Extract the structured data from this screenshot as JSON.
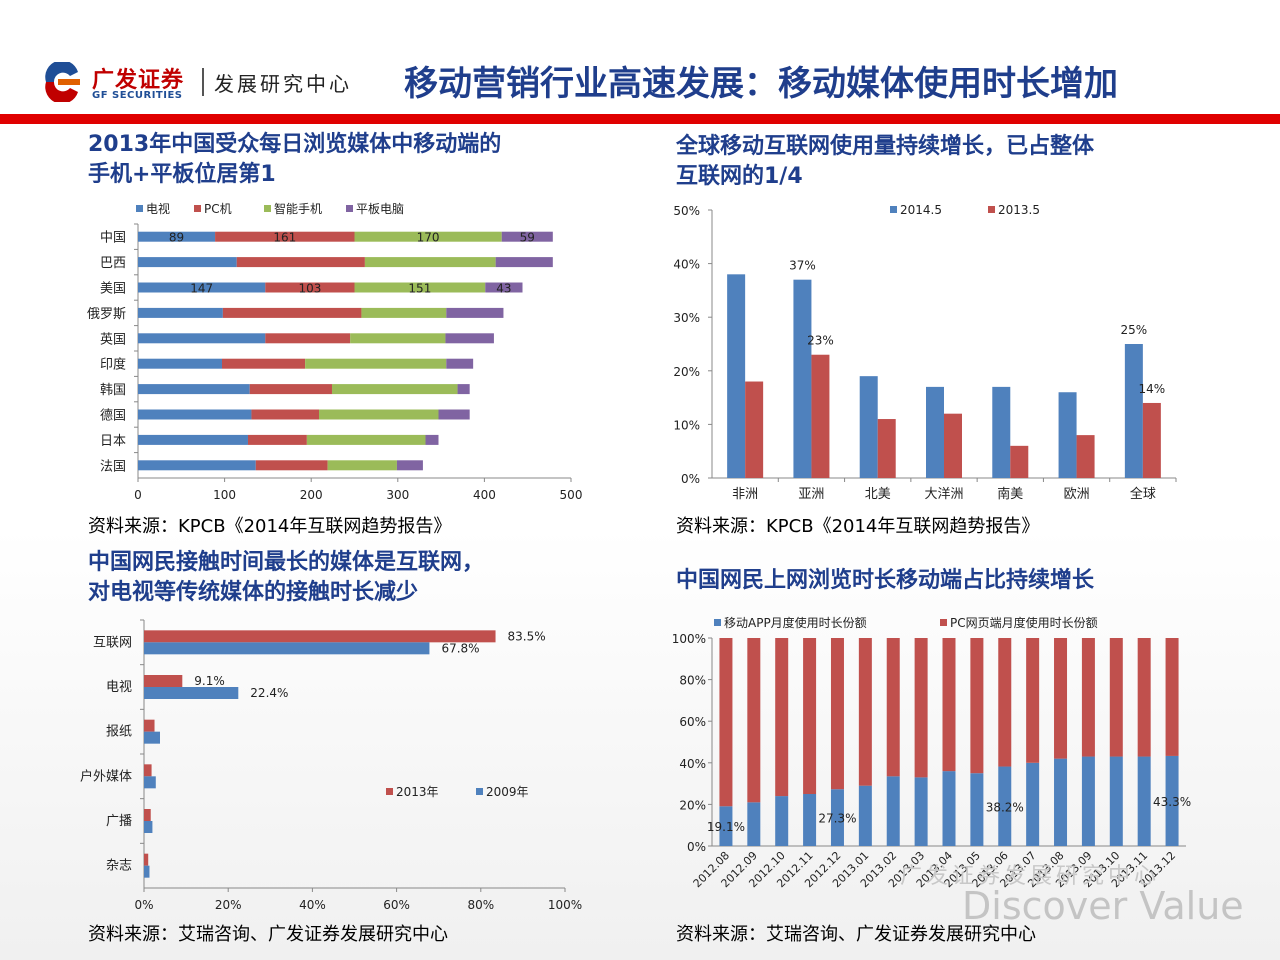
{
  "header": {
    "logo_cn": "广发证券",
    "logo_en": "GF SECURITIES",
    "logo_sub": "发展研究中心",
    "title": "移动营销行业高速发展：移动媒体使用时长增加"
  },
  "colors": {
    "blue": "#4f81bd",
    "red": "#c0504d",
    "green": "#9bbb59",
    "purple": "#8064a2",
    "title_blue": "#1f3e8c",
    "accent_red": "#e00000"
  },
  "panel1": {
    "title_line1": "2013年中国受众每日浏览媒体中移动端的",
    "title_line2": "手机+平板位居第1",
    "source": "资料来源：KPCB《2014年互联网趋势报告》"
  },
  "panel2": {
    "title_line1": "全球移动互联网使用量持续增长，已占整体",
    "title_line2": "互联网的1/4",
    "source": "资料来源：KPCB《2014年互联网趋势报告》"
  },
  "panel3": {
    "title_line1": "中国网民接触时间最长的媒体是互联网，",
    "title_line2": "对电视等传统媒体的接触时长减少",
    "source": "资料来源：艾瑞咨询、广发证券发展研究中心"
  },
  "panel4": {
    "title_line1": "中国网民上网浏览时长移动端占比持续增长",
    "source": "资料来源：艾瑞咨询、广发证券发展研究中心"
  },
  "watermark": {
    "line1": "广发证券发展研究中心",
    "line2": "Discover Value"
  },
  "chart_data": [
    {
      "type": "bar",
      "orientation": "horizontal",
      "stacked": true,
      "categories": [
        "中国",
        "巴西",
        "美国",
        "俄罗斯",
        "英国",
        "印度",
        "韩国",
        "德国",
        "日本",
        "法国"
      ],
      "series": [
        {
          "name": "电视",
          "color": "#4f81bd",
          "values": [
            89,
            114,
            147,
            98,
            147,
            97,
            129,
            131,
            127,
            136
          ]
        },
        {
          "name": "PC机",
          "color": "#c0504d",
          "values": [
            161,
            148,
            103,
            160,
            98,
            96,
            95,
            78,
            68,
            83
          ]
        },
        {
          "name": "智能手机",
          "color": "#9bbb59",
          "values": [
            170,
            151,
            151,
            98,
            110,
            163,
            145,
            138,
            137,
            80
          ]
        },
        {
          "name": "平板电脑",
          "color": "#8064a2",
          "values": [
            59,
            66,
            43,
            66,
            56,
            31,
            14,
            36,
            15,
            30
          ]
        }
      ],
      "labeled_rows": [
        "中国",
        "美国"
      ],
      "xlim": [
        0,
        500
      ],
      "xticks": [
        0,
        100,
        200,
        300,
        400,
        500
      ],
      "legend": "top"
    },
    {
      "type": "bar",
      "categories": [
        "非洲",
        "亚洲",
        "北美",
        "大洋洲",
        "南美",
        "欧洲",
        "全球"
      ],
      "series": [
        {
          "name": "2014.5",
          "color": "#4f81bd",
          "values": [
            38,
            37,
            19,
            17,
            17,
            16,
            25
          ]
        },
        {
          "name": "2013.5",
          "color": "#c0504d",
          "values": [
            18,
            23,
            11,
            12,
            6,
            8,
            14
          ]
        }
      ],
      "data_labels": [
        {
          "series": 0,
          "index": 1,
          "text": "37%"
        },
        {
          "series": 1,
          "index": 1,
          "text": "23%"
        },
        {
          "series": 0,
          "index": 6,
          "text": "25%"
        },
        {
          "series": 1,
          "index": 6,
          "text": "14%"
        }
      ],
      "ylim": [
        0,
        50
      ],
      "yticks": [
        "0%",
        "10%",
        "20%",
        "30%",
        "40%",
        "50%"
      ],
      "legend": "top"
    },
    {
      "type": "bar",
      "orientation": "horizontal",
      "categories": [
        "互联网",
        "电视",
        "报纸",
        "户外媒体",
        "广播",
        "杂志"
      ],
      "series": [
        {
          "name": "2013年",
          "color": "#c0504d",
          "values": [
            83.5,
            9.1,
            2.5,
            1.8,
            1.6,
            1.0
          ]
        },
        {
          "name": "2009年",
          "color": "#4f81bd",
          "values": [
            67.8,
            22.4,
            3.8,
            2.8,
            2.0,
            1.3
          ]
        }
      ],
      "data_labels": [
        {
          "series": 0,
          "index": 0,
          "text": "83.5%"
        },
        {
          "series": 1,
          "index": 0,
          "text": "67.8%"
        },
        {
          "series": 0,
          "index": 1,
          "text": "9.1%"
        },
        {
          "series": 1,
          "index": 1,
          "text": "22.4%"
        }
      ],
      "xlim": [
        0,
        100
      ],
      "xticks": [
        "0%",
        "20%",
        "40%",
        "60%",
        "80%",
        "100%"
      ],
      "legend": "right"
    },
    {
      "type": "bar",
      "stacked": true,
      "percent": true,
      "categories": [
        "2012.08",
        "2012.09",
        "2012.10",
        "2012.11",
        "2012.12",
        "2013.01",
        "2013.02",
        "2013.03",
        "2013.04",
        "2013.05",
        "2013.06",
        "2013.07",
        "2013.08",
        "2013.09",
        "2013.10",
        "2013.11",
        "2013.12"
      ],
      "series": [
        {
          "name": "移动APP月度使用时长份额",
          "color": "#4f81bd",
          "values": [
            19.1,
            21,
            24,
            25,
            27.3,
            29,
            33.5,
            33,
            36,
            35,
            38.2,
            40,
            42,
            43,
            43,
            43,
            43.3
          ]
        },
        {
          "name": "PC网页端月度使用时长份额",
          "color": "#c0504d",
          "values": [
            80.9,
            79,
            76,
            75,
            72.7,
            71,
            66.5,
            67,
            64,
            65,
            61.8,
            60,
            58,
            57,
            57,
            57,
            56.7
          ]
        }
      ],
      "data_labels": [
        {
          "series": 0,
          "index": 0,
          "text": "19.1%"
        },
        {
          "series": 0,
          "index": 4,
          "text": "27.3%"
        },
        {
          "series": 0,
          "index": 10,
          "text": "38.2%"
        },
        {
          "series": 0,
          "index": 16,
          "text": "43.3%"
        }
      ],
      "ylim": [
        0,
        100
      ],
      "yticks": [
        "0%",
        "20%",
        "40%",
        "60%",
        "80%",
        "100%"
      ],
      "legend": "top"
    }
  ]
}
